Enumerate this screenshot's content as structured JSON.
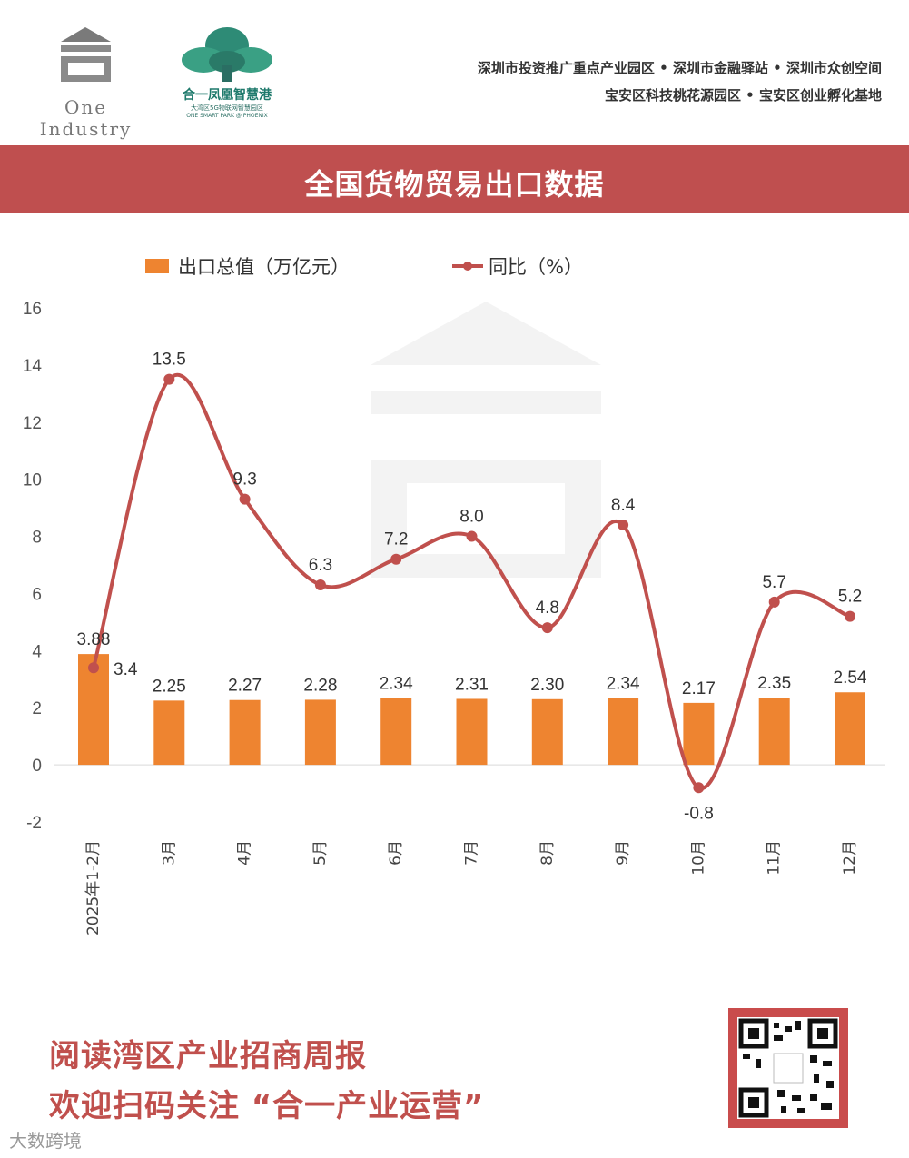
{
  "header": {
    "logo1_text": "One Industry",
    "logo2_name": "合一凤凰智慧港",
    "logo2_sub1": "大湾区5G物联网智慧园区",
    "logo2_sub2": "ONE SMART PARK @ PHOENIX",
    "tagline1": "深圳市投资推广重点产业园区 • 深圳市金融驿站 • 深圳市众创空间",
    "tagline2": "宝安区科技桃花源园区 • 宝安区创业孵化基地"
  },
  "banner": {
    "title": "全国货物贸易出口数据"
  },
  "legend": {
    "bar": "出口总值（万亿元）",
    "line": "同比（%）"
  },
  "colors": {
    "bar": "#ee8430",
    "line": "#c0504d",
    "banner": "#bf4f4f"
  },
  "chart_data": {
    "type": "bar",
    "categories": [
      "2025年1-2月",
      "3月",
      "4月",
      "5月",
      "6月",
      "7月",
      "8月",
      "9月",
      "10月",
      "11月",
      "12月"
    ],
    "series": [
      {
        "name": "出口总值（万亿元）",
        "type": "bar",
        "values": [
          3.88,
          2.25,
          2.27,
          2.28,
          2.34,
          2.31,
          2.3,
          2.34,
          2.17,
          2.35,
          2.54
        ],
        "labels": [
          "3.88",
          "2.25",
          "2.27",
          "2.28",
          "2.34",
          "2.31",
          "2.30",
          "2.34",
          "2.17",
          "2.35",
          "2.54"
        ]
      },
      {
        "name": "同比（%）",
        "type": "line",
        "values": [
          3.4,
          13.5,
          9.3,
          6.3,
          7.2,
          8.0,
          4.8,
          8.4,
          -0.8,
          5.7,
          5.2
        ],
        "labels": [
          "3.4",
          "13.5",
          "9.3",
          "6.3",
          "7.2",
          "8.0",
          "4.8",
          "8.4",
          "-0.8",
          "5.7",
          "5.2"
        ]
      }
    ],
    "ylim": [
      -2,
      16
    ],
    "yticks": [
      "-2",
      "0",
      "2",
      "4",
      "6",
      "8",
      "10",
      "12",
      "14",
      "16"
    ],
    "grid": false,
    "legend_position": "top"
  },
  "footer": {
    "line1": "阅读湾区产业招商周报",
    "line2": "欢迎扫码关注 “合一产业运营”",
    "corner_mark": "大数跨境"
  }
}
